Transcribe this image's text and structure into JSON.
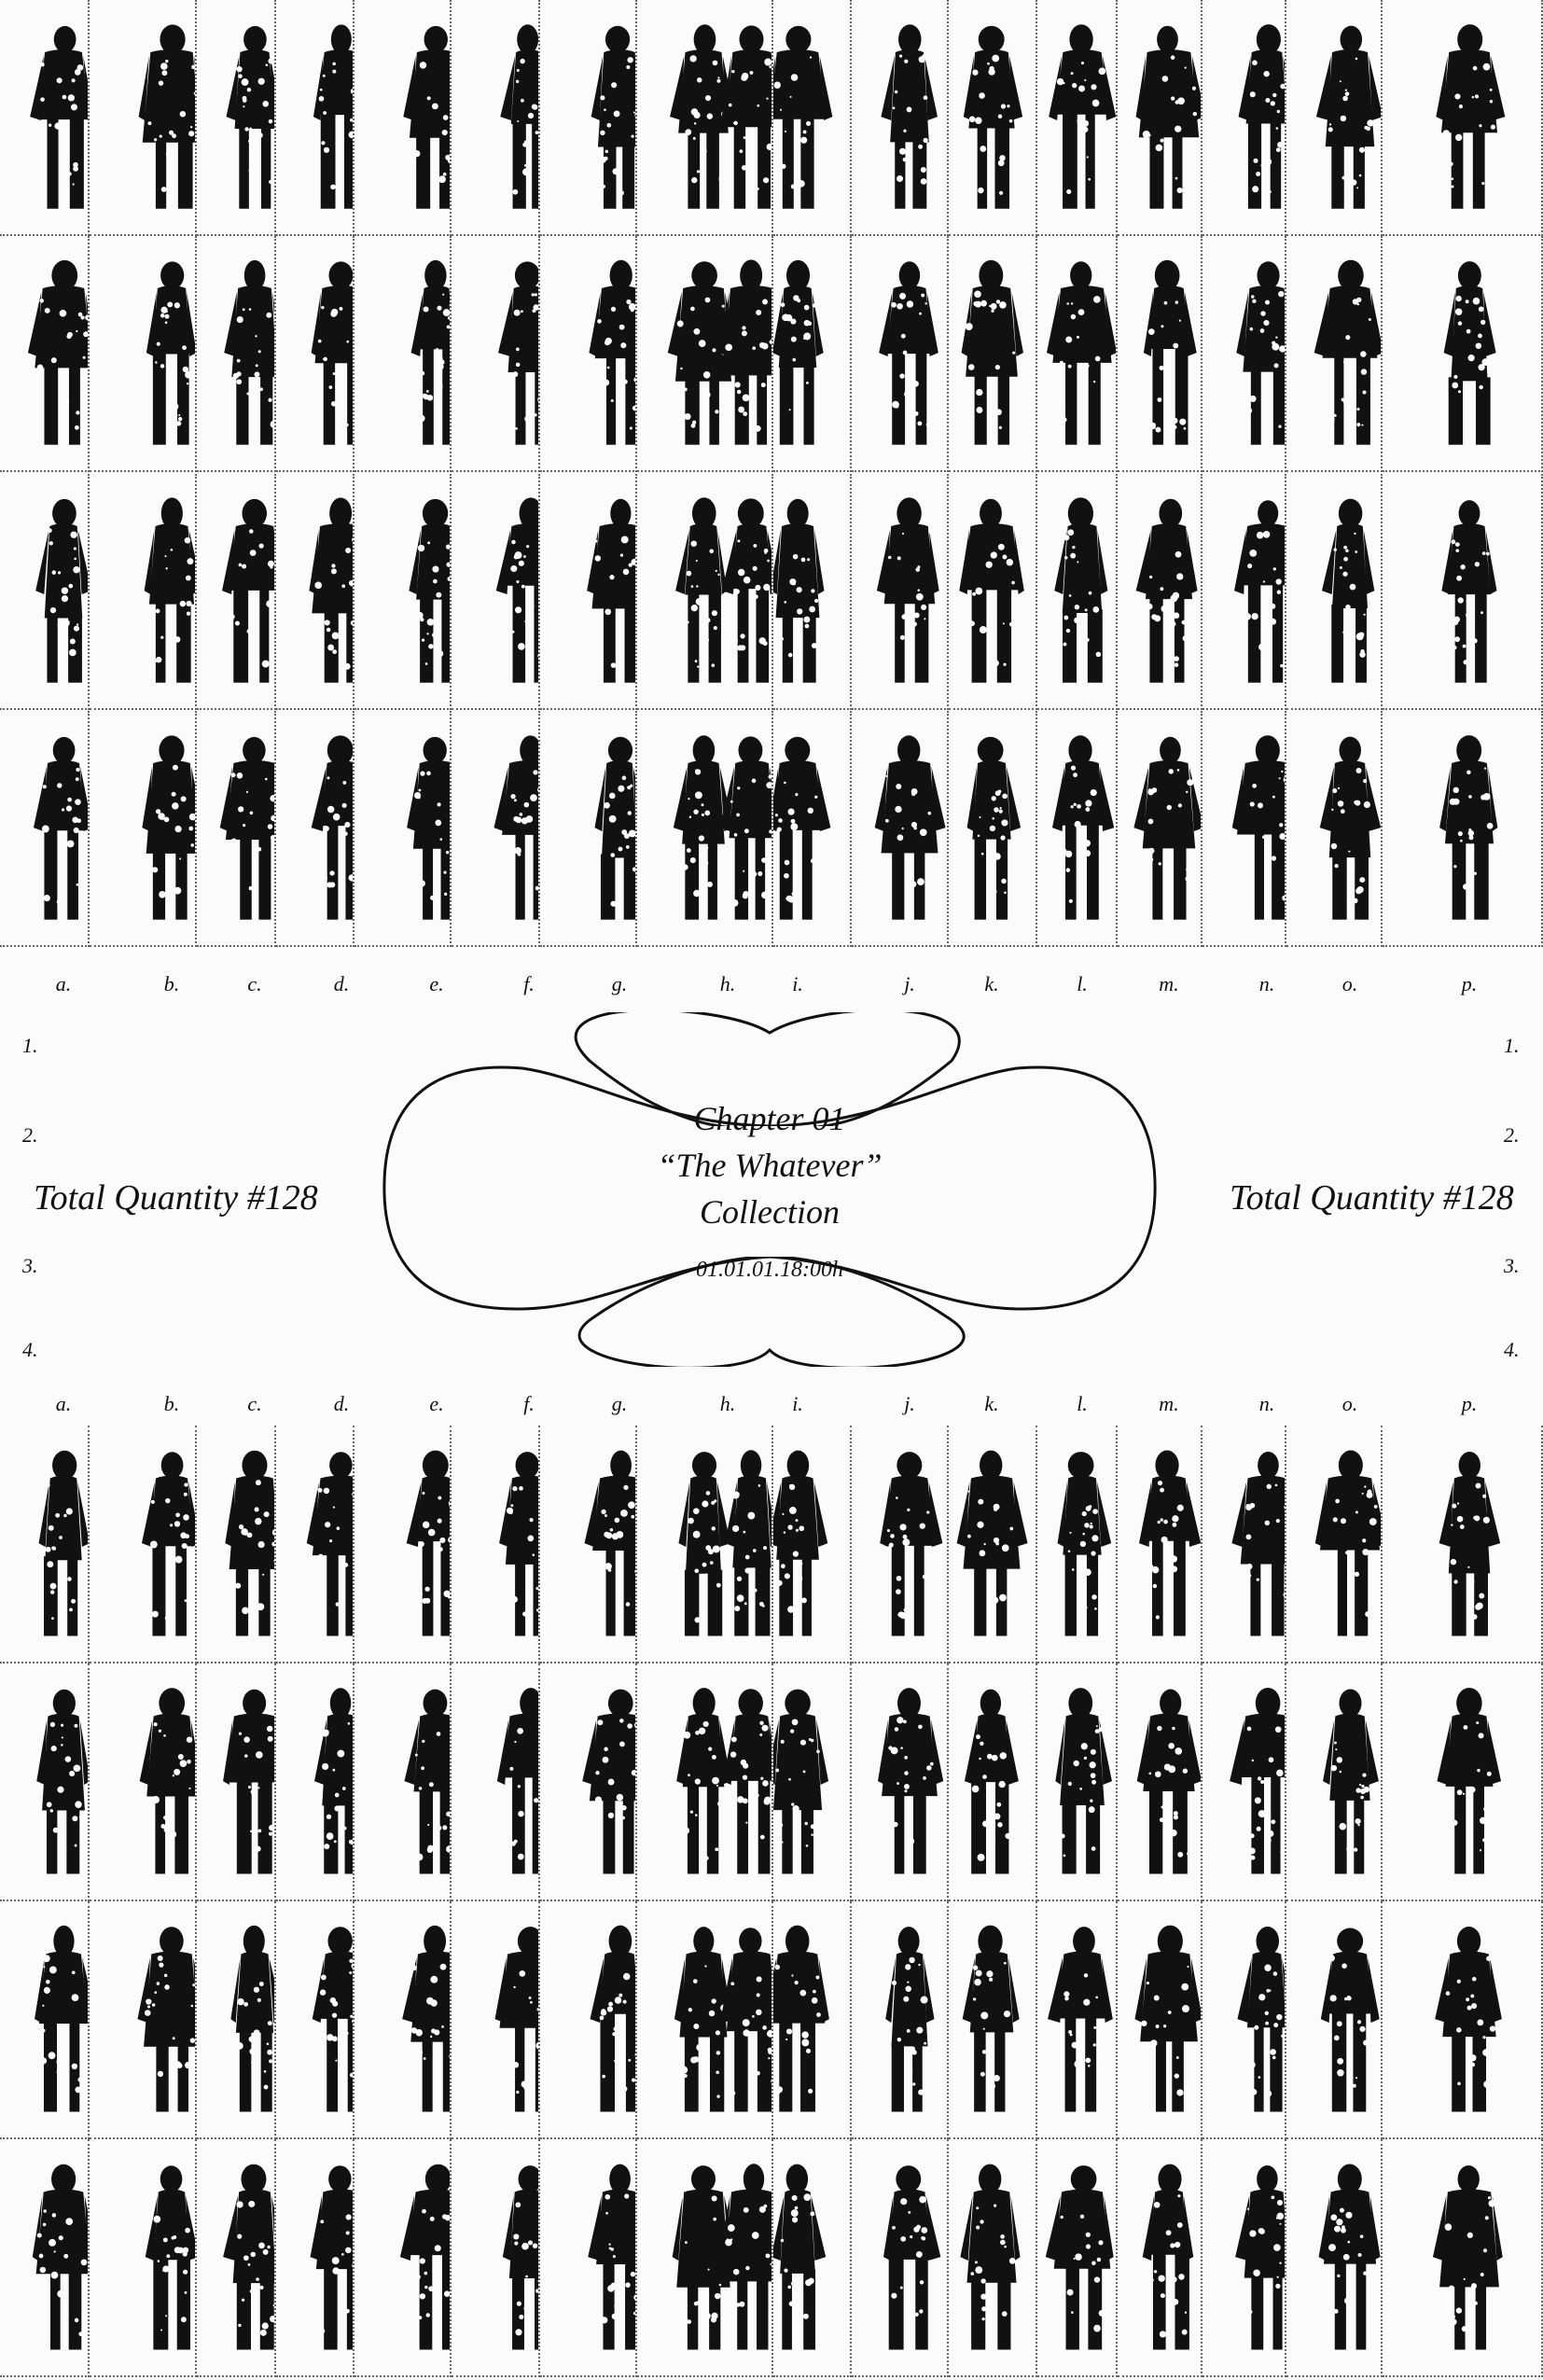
{
  "columns": [
    "a.",
    "b.",
    "c.",
    "d.",
    "e.",
    "f.",
    "g.",
    "h.",
    "i.",
    "j.",
    "k.",
    "l.",
    "m.",
    "n.",
    "o.",
    "p."
  ],
  "rows": [
    "1.",
    "2.",
    "3.",
    "4."
  ],
  "total_left": "Total Quantity #128",
  "total_right": "Total Quantity #128",
  "center": {
    "line1": "Chapter 01",
    "line2": "“The Whatever”",
    "line3": "Collection",
    "date": "01.01.01.18:00h"
  },
  "colors": {
    "ink": "#111111",
    "paper": "#fbfbfb",
    "grid": "#666666"
  }
}
